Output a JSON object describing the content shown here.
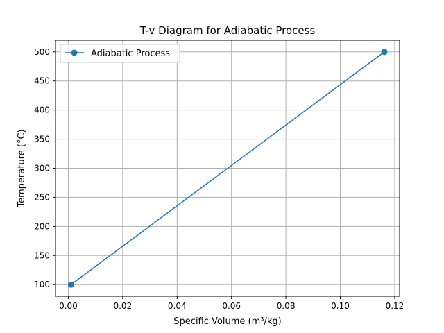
{
  "chart_data": {
    "type": "line",
    "title": "T-v Diagram for Adiabatic Process",
    "xlabel": "Specific Volume (m³/kg)",
    "ylabel": "Temperature (°C)",
    "xlim": [
      -0.0047,
      0.1218
    ],
    "ylim": [
      80,
      520
    ],
    "xticks": [
      0.0,
      0.02,
      0.04,
      0.06,
      0.08,
      0.1,
      0.12
    ],
    "xtick_labels": [
      "0.00",
      "0.02",
      "0.04",
      "0.06",
      "0.08",
      "0.10",
      "0.12"
    ],
    "yticks": [
      100,
      150,
      200,
      250,
      300,
      350,
      400,
      450,
      500
    ],
    "ytick_labels": [
      "100",
      "150",
      "200",
      "250",
      "300",
      "350",
      "400",
      "450",
      "500"
    ],
    "grid": true,
    "legend_position": "upper-left",
    "series": [
      {
        "name": "Adiabatic Process",
        "color": "#1f77b4",
        "marker": "circle",
        "x": [
          0.001,
          0.1162
        ],
        "y": [
          100,
          500
        ]
      }
    ]
  }
}
